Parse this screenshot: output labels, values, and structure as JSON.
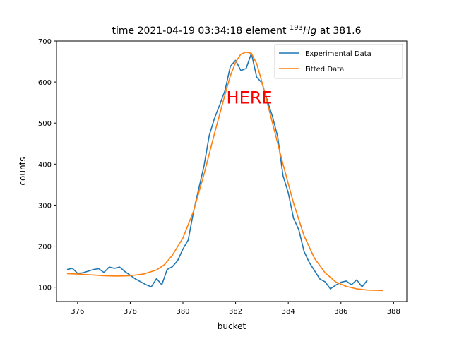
{
  "title": {
    "prefix": "time 2021-04-19 03:34:18 element ",
    "isotope_mass": "193",
    "isotope_symbol": "Hg",
    "suffix": " at 381.6"
  },
  "chart_data": {
    "type": "line",
    "xlabel": "bucket",
    "ylabel": "counts",
    "xlim": [
      375.2,
      388.5
    ],
    "ylim": [
      65,
      700
    ],
    "xticks": [
      376,
      378,
      380,
      382,
      384,
      386,
      388
    ],
    "yticks": [
      100,
      200,
      300,
      400,
      500,
      600,
      700
    ],
    "grid": false,
    "legend_position": "top-right",
    "series": [
      {
        "name": "Experimental Data",
        "color": "#1f77b4",
        "points": [
          [
            375.6,
            143
          ],
          [
            375.8,
            146
          ],
          [
            376.0,
            134
          ],
          [
            376.2,
            135
          ],
          [
            376.4,
            139
          ],
          [
            376.6,
            143
          ],
          [
            376.8,
            145
          ],
          [
            377.0,
            136
          ],
          [
            377.2,
            149
          ],
          [
            377.4,
            146
          ],
          [
            377.6,
            149
          ],
          [
            377.8,
            138
          ],
          [
            378.0,
            129
          ],
          [
            378.2,
            120
          ],
          [
            378.4,
            113
          ],
          [
            378.6,
            106
          ],
          [
            378.8,
            101
          ],
          [
            379.0,
            121
          ],
          [
            379.2,
            106
          ],
          [
            379.4,
            143
          ],
          [
            379.6,
            150
          ],
          [
            379.8,
            165
          ],
          [
            380.0,
            193
          ],
          [
            380.2,
            215
          ],
          [
            380.4,
            283
          ],
          [
            380.6,
            340
          ],
          [
            380.8,
            395
          ],
          [
            381.0,
            470
          ],
          [
            381.2,
            512
          ],
          [
            381.4,
            545
          ],
          [
            381.6,
            580
          ],
          [
            381.8,
            638
          ],
          [
            382.0,
            653
          ],
          [
            382.2,
            628
          ],
          [
            382.4,
            633
          ],
          [
            382.6,
            670
          ],
          [
            382.8,
            612
          ],
          [
            383.0,
            598
          ],
          [
            383.2,
            556
          ],
          [
            383.4,
            516
          ],
          [
            383.6,
            466
          ],
          [
            383.8,
            372
          ],
          [
            384.0,
            330
          ],
          [
            384.2,
            268
          ],
          [
            384.4,
            240
          ],
          [
            384.6,
            187
          ],
          [
            384.8,
            160
          ],
          [
            385.0,
            140
          ],
          [
            385.2,
            120
          ],
          [
            385.4,
            113
          ],
          [
            385.6,
            96
          ],
          [
            385.8,
            105
          ],
          [
            386.0,
            112
          ],
          [
            386.2,
            115
          ],
          [
            386.4,
            106
          ],
          [
            386.6,
            118
          ],
          [
            386.8,
            101
          ],
          [
            387.0,
            117
          ]
        ]
      },
      {
        "name": "Fitted Data",
        "color": "#ff7f0e",
        "points": [
          [
            375.6,
            133
          ],
          [
            376.0,
            132
          ],
          [
            376.5,
            130
          ],
          [
            377.0,
            128
          ],
          [
            377.5,
            127
          ],
          [
            378.0,
            128
          ],
          [
            378.5,
            132
          ],
          [
            379.0,
            142
          ],
          [
            379.3,
            155
          ],
          [
            379.6,
            178
          ],
          [
            380.0,
            220
          ],
          [
            380.4,
            285
          ],
          [
            380.8,
            375
          ],
          [
            381.2,
            475
          ],
          [
            381.6,
            570
          ],
          [
            381.8,
            615
          ],
          [
            382.0,
            648
          ],
          [
            382.2,
            668
          ],
          [
            382.4,
            673
          ],
          [
            382.6,
            670
          ],
          [
            382.8,
            645
          ],
          [
            383.0,
            600
          ],
          [
            383.4,
            500
          ],
          [
            383.8,
            400
          ],
          [
            384.2,
            305
          ],
          [
            384.6,
            225
          ],
          [
            385.0,
            170
          ],
          [
            385.4,
            135
          ],
          [
            385.8,
            113
          ],
          [
            386.2,
            102
          ],
          [
            386.6,
            96
          ],
          [
            387.0,
            93
          ],
          [
            387.6,
            92
          ]
        ]
      }
    ],
    "annotation": {
      "text": "HERE",
      "x": 381.65,
      "y": 548,
      "color": "#ff0000"
    }
  }
}
